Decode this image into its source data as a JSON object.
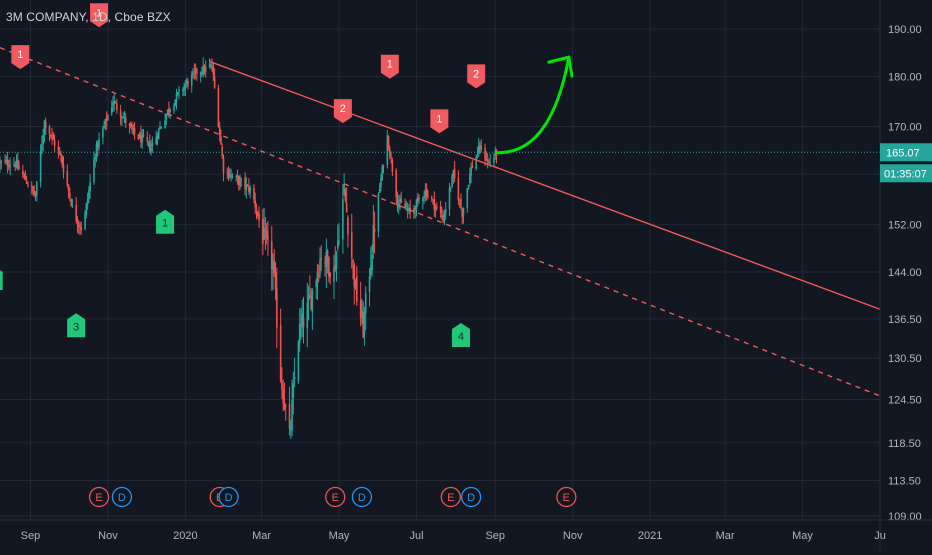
{
  "colors": {
    "background": "#131722",
    "grid": "#232734",
    "text": "#b2b5be",
    "up": "#26a69a",
    "down": "#ef5350",
    "trendline": "#f05a5a",
    "price_line": "#26a69a",
    "price_label_bg": "#26a69a",
    "arrow": "#00e600",
    "marker_red": "#f05a60",
    "marker_green": "#22c77a",
    "event_E": "#ef5350",
    "event_D": "#2196f3"
  },
  "chart_data": {
    "type": "candlestick",
    "title": "3M COMPANY, 1D, Cboe BZX",
    "y_ticks": [
      "190.00",
      "180.00",
      "170.00",
      "161.00",
      "152.00",
      "144.00",
      "136.50",
      "130.50",
      "124.50",
      "118.50",
      "113.50",
      "109.00"
    ],
    "y_scale": "log",
    "ylim": [
      109,
      195.5
    ],
    "x_axis_months": [
      "Sep",
      "Nov",
      "2020",
      "Mar",
      "May",
      "Jul",
      "Sep",
      "Nov",
      "2021",
      "Mar",
      "May",
      "Ju"
    ],
    "last_price": "165.07",
    "countdown": "01:35:07",
    "price_path": [
      {
        "date": "2019-08-20",
        "value": 163
      },
      {
        "date": "2019-09-05",
        "value": 157
      },
      {
        "date": "2019-09-12",
        "value": 171
      },
      {
        "date": "2019-09-25",
        "value": 164
      },
      {
        "date": "2019-10-05",
        "value": 154
      },
      {
        "date": "2019-10-12",
        "value": 151
      },
      {
        "date": "2019-10-22",
        "value": 165
      },
      {
        "date": "2019-11-05",
        "value": 175
      },
      {
        "date": "2019-11-20",
        "value": 169
      },
      {
        "date": "2019-12-05",
        "value": 166
      },
      {
        "date": "2019-12-18",
        "value": 173
      },
      {
        "date": "2019-12-28",
        "value": 177
      },
      {
        "date": "2020-01-10",
        "value": 181
      },
      {
        "date": "2020-01-22",
        "value": 182
      },
      {
        "date": "2020-01-31",
        "value": 162
      },
      {
        "date": "2020-02-10",
        "value": 160
      },
      {
        "date": "2020-02-22",
        "value": 158
      },
      {
        "date": "2020-03-02",
        "value": 150
      },
      {
        "date": "2020-03-10",
        "value": 145
      },
      {
        "date": "2020-03-16",
        "value": 128
      },
      {
        "date": "2020-03-23",
        "value": 119
      },
      {
        "date": "2020-03-30",
        "value": 134
      },
      {
        "date": "2020-04-08",
        "value": 139
      },
      {
        "date": "2020-04-17",
        "value": 147
      },
      {
        "date": "2020-04-27",
        "value": 144
      },
      {
        "date": "2020-05-05",
        "value": 158
      },
      {
        "date": "2020-05-14",
        "value": 141
      },
      {
        "date": "2020-05-20",
        "value": 135
      },
      {
        "date": "2020-05-29",
        "value": 152
      },
      {
        "date": "2020-06-08",
        "value": 168
      },
      {
        "date": "2020-06-16",
        "value": 156
      },
      {
        "date": "2020-06-26",
        "value": 154
      },
      {
        "date": "2020-07-08",
        "value": 158
      },
      {
        "date": "2020-07-22",
        "value": 153
      },
      {
        "date": "2020-07-30",
        "value": 161
      },
      {
        "date": "2020-08-06",
        "value": 154
      },
      {
        "date": "2020-08-13",
        "value": 162
      },
      {
        "date": "2020-08-20",
        "value": 166
      },
      {
        "date": "2020-08-27",
        "value": 163
      },
      {
        "date": "2020-09-02",
        "value": 165
      }
    ],
    "trendlines": [
      {
        "style": "solid",
        "from": {
          "date": "2020-01-21",
          "value": 183
        },
        "to": {
          "date": "2021-07-01",
          "value": 138
        }
      },
      {
        "style": "dashed",
        "from": {
          "date": "2019-08-08",
          "value": 186
        },
        "to": {
          "date": "2021-07-01",
          "value": 125
        }
      }
    ],
    "projection_arrow": {
      "from": {
        "date": "2020-09-02",
        "value": 165
      },
      "to": {
        "date": "2020-10-29",
        "value": 184
      }
    },
    "markers": [
      {
        "label": "1",
        "color": "red",
        "dir": "down",
        "date": "2019-08-24",
        "value": 184
      },
      {
        "label": "1",
        "color": "red",
        "dir": "down",
        "date": "2019-10-25",
        "value": 193
      },
      {
        "label": "2",
        "color": "red",
        "dir": "down",
        "date": "2020-01-08",
        "value": 200
      },
      {
        "label": "2",
        "color": "red",
        "dir": "down",
        "date": "2020-05-04",
        "value": 173
      },
      {
        "label": "1",
        "color": "red",
        "dir": "down",
        "date": "2020-06-10",
        "value": 182
      },
      {
        "label": "1",
        "color": "red",
        "dir": "down",
        "date": "2020-07-19",
        "value": 171
      },
      {
        "label": "2",
        "color": "red",
        "dir": "down",
        "date": "2020-08-17",
        "value": 180
      },
      {
        "label": "2",
        "color": "green",
        "dir": "up",
        "date": "2019-07-28",
        "value": 145
      },
      {
        "label": "3",
        "color": "green",
        "dir": "up",
        "date": "2019-08-03",
        "value": 143
      },
      {
        "label": "3",
        "color": "green",
        "dir": "up",
        "date": "2019-10-07",
        "value": 135.5
      },
      {
        "label": "1",
        "color": "green",
        "dir": "up",
        "date": "2019-12-16",
        "value": 152.5
      },
      {
        "label": "4",
        "color": "green",
        "dir": "up",
        "date": "2020-08-05",
        "value": 134
      }
    ],
    "events": [
      {
        "label": "D",
        "date": "2019-07-28"
      },
      {
        "label": "E",
        "date": "2019-10-25"
      },
      {
        "label": "D",
        "date": "2019-11-12"
      },
      {
        "label": "E",
        "date": "2020-01-28"
      },
      {
        "label": "D",
        "date": "2020-02-04"
      },
      {
        "label": "E",
        "date": "2020-04-28"
      },
      {
        "label": "D",
        "date": "2020-05-19"
      },
      {
        "label": "E",
        "date": "2020-07-28"
      },
      {
        "label": "D",
        "date": "2020-08-13"
      },
      {
        "label": "E",
        "date": "2020-10-27"
      }
    ]
  }
}
